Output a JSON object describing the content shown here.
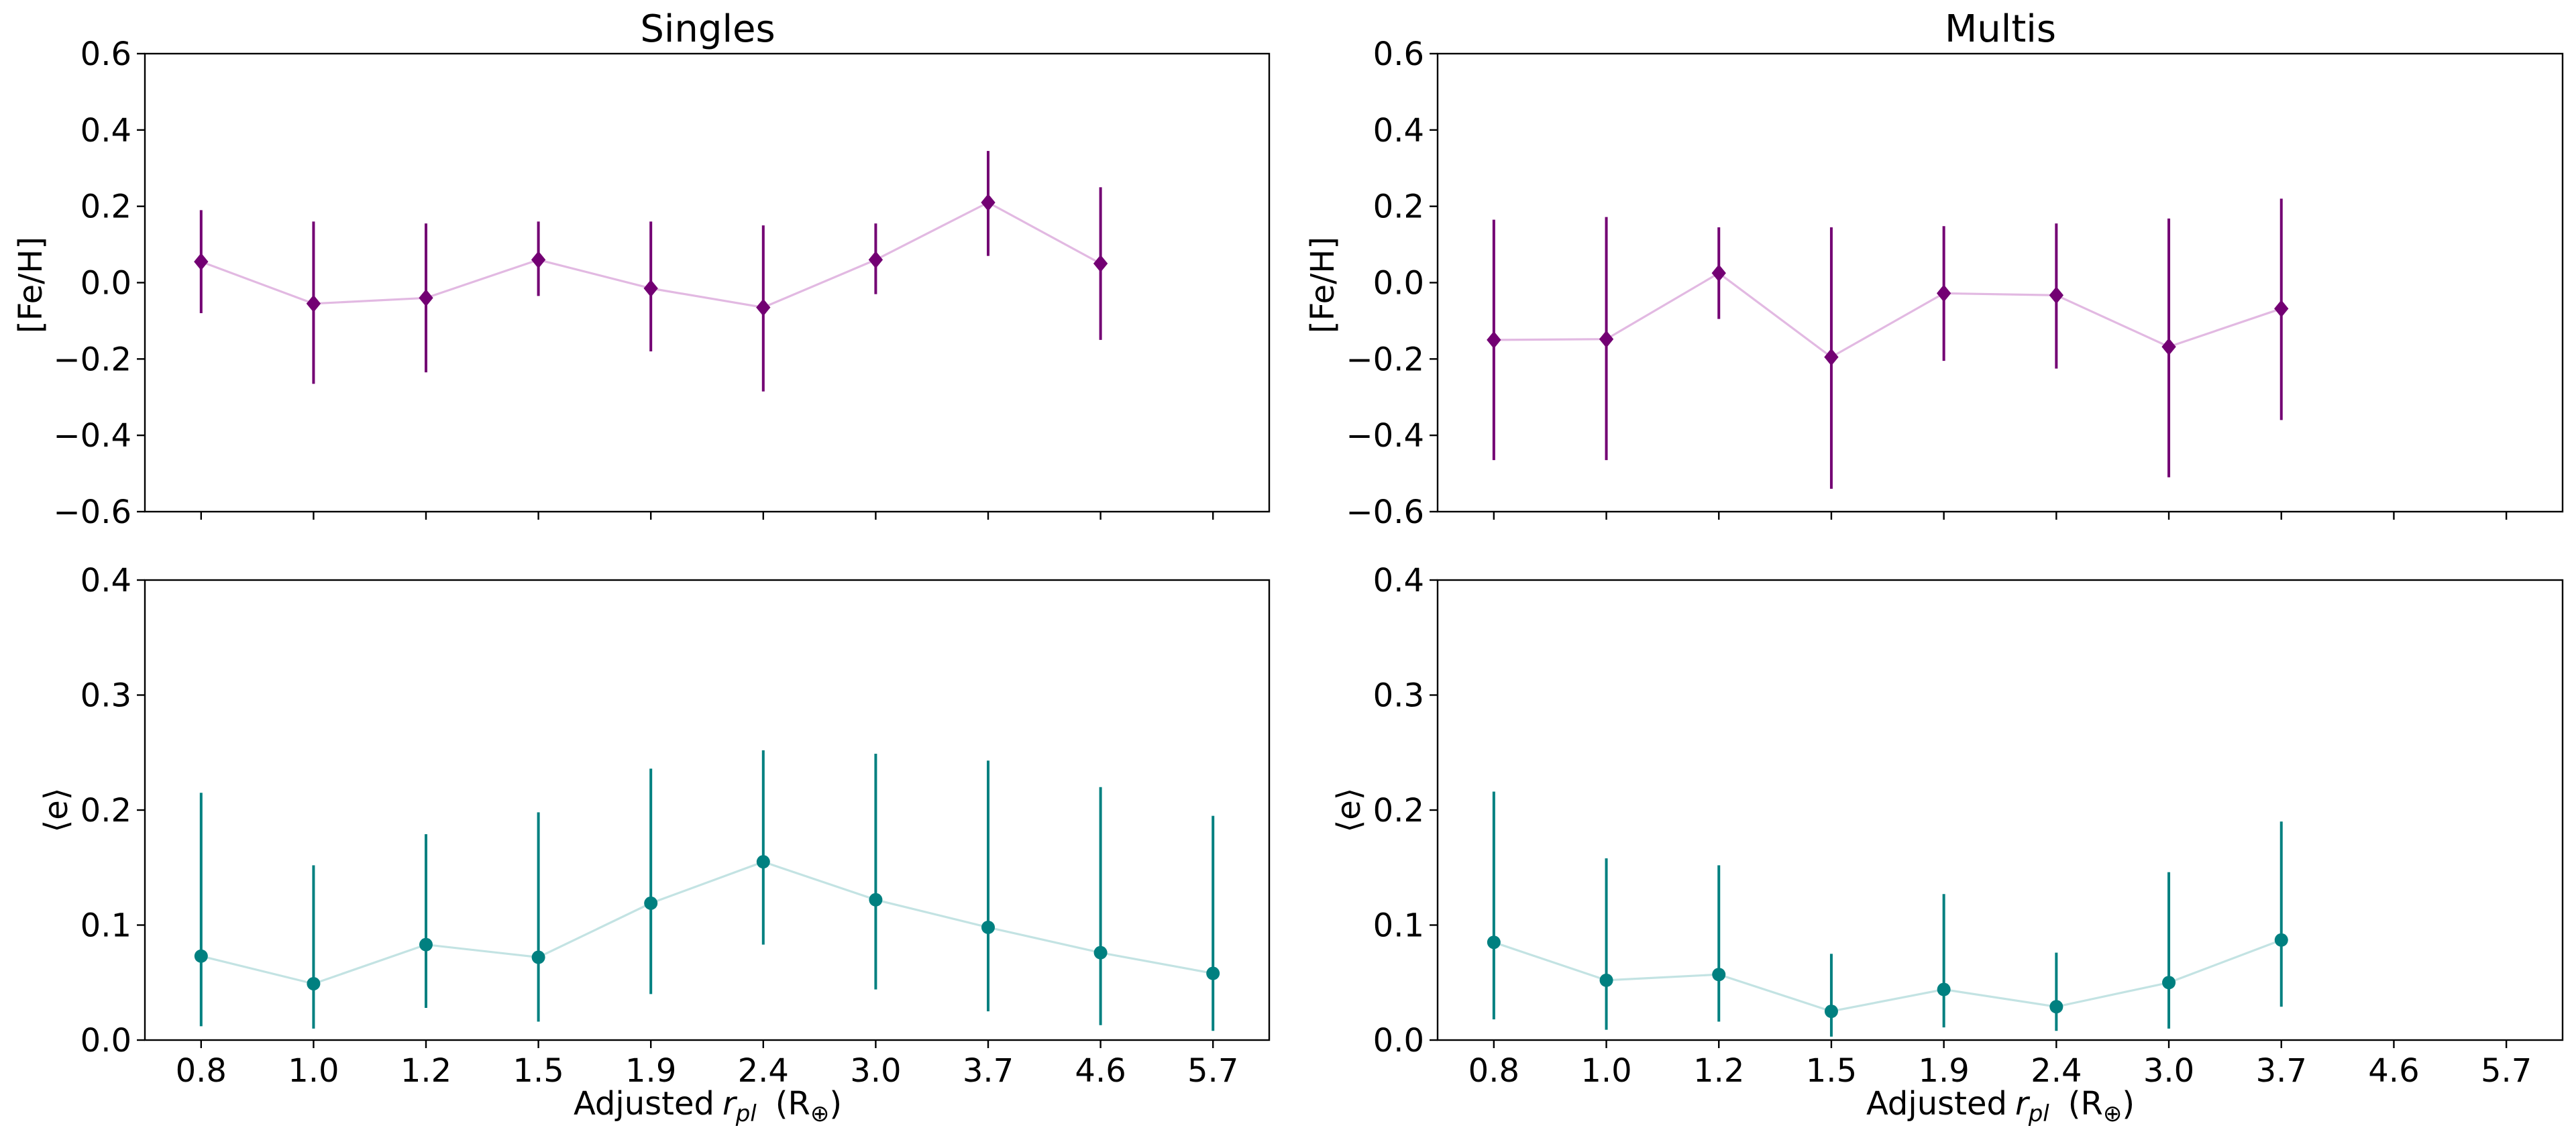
{
  "chart_data": [
    {
      "type": "errorbar-line",
      "title": "Singles",
      "ylabel": "[Fe/H]",
      "xlabel": "",
      "ylim": [
        -0.6,
        0.6
      ],
      "yticks": [
        "0.6",
        "0.4",
        "0.2",
        "0.0",
        "−0.2",
        "−0.4",
        "−0.6"
      ],
      "ytick_values": [
        0.6,
        0.4,
        0.2,
        0.0,
        -0.2,
        -0.4,
        -0.6
      ],
      "categories": [
        "0.8",
        "1.0",
        "1.2",
        "1.5",
        "1.9",
        "2.4",
        "3.0",
        "3.7",
        "4.6",
        "5.7"
      ],
      "show_xticklabels": false,
      "marker": "diamond",
      "marker_color": "#730073",
      "line_color": "#e2b9e2",
      "values": [
        0.055,
        -0.055,
        -0.04,
        0.06,
        -0.015,
        -0.065,
        0.06,
        0.21,
        0.05,
        null
      ],
      "err_low": [
        -0.08,
        -0.265,
        -0.235,
        -0.035,
        -0.18,
        -0.285,
        -0.03,
        0.07,
        -0.15,
        null
      ],
      "err_high": [
        0.19,
        0.16,
        0.155,
        0.16,
        0.16,
        0.15,
        0.155,
        0.345,
        0.25,
        null
      ]
    },
    {
      "type": "errorbar-line",
      "title": "Multis",
      "ylabel": "[Fe/H]",
      "xlabel": "",
      "ylim": [
        -0.6,
        0.6
      ],
      "yticks": [
        "0.6",
        "0.4",
        "0.2",
        "0.0",
        "−0.2",
        "−0.4",
        "−0.6"
      ],
      "ytick_values": [
        0.6,
        0.4,
        0.2,
        0.0,
        -0.2,
        -0.4,
        -0.6
      ],
      "categories": [
        "0.8",
        "1.0",
        "1.2",
        "1.5",
        "1.9",
        "2.4",
        "3.0",
        "3.7",
        "4.6",
        "5.7"
      ],
      "show_xticklabels": false,
      "marker": "diamond",
      "marker_color": "#730073",
      "line_color": "#e2b9e2",
      "values": [
        -0.15,
        -0.148,
        0.025,
        -0.195,
        -0.028,
        -0.033,
        -0.168,
        -0.068,
        null,
        null
      ],
      "err_low": [
        -0.465,
        -0.465,
        -0.095,
        -0.54,
        -0.205,
        -0.225,
        -0.51,
        -0.36,
        null,
        null
      ],
      "err_high": [
        0.165,
        0.172,
        0.145,
        0.145,
        0.148,
        0.155,
        0.168,
        0.22,
        null,
        null
      ]
    },
    {
      "type": "errorbar-line",
      "title": "",
      "ylabel": "⟨e⟩",
      "xlabel": "Adjusted",
      "xlabel_sym": "r",
      "xlabel_sub": "pl",
      "xlabel_unit": "(R",
      "xlabel_unit_sub": "⊕",
      "xlabel_close": ")",
      "ylim": [
        0.0,
        0.4
      ],
      "yticks": [
        "0.4",
        "0.3",
        "0.2",
        "0.1",
        "0.0"
      ],
      "ytick_values": [
        0.4,
        0.3,
        0.2,
        0.1,
        0.0
      ],
      "categories": [
        "0.8",
        "1.0",
        "1.2",
        "1.5",
        "1.9",
        "2.4",
        "3.0",
        "3.7",
        "4.6",
        "5.7"
      ],
      "show_xticklabels": true,
      "marker": "circle",
      "marker_color": "#008080",
      "line_color": "#c3e3e3",
      "values": [
        0.073,
        0.049,
        0.083,
        0.072,
        0.119,
        0.155,
        0.122,
        0.098,
        0.076,
        0.058
      ],
      "err_low": [
        0.012,
        0.01,
        0.028,
        0.016,
        0.04,
        0.083,
        0.044,
        0.025,
        0.013,
        0.008
      ],
      "err_high": [
        0.215,
        0.152,
        0.179,
        0.198,
        0.236,
        0.252,
        0.249,
        0.243,
        0.22,
        0.195
      ]
    },
    {
      "type": "errorbar-line",
      "title": "",
      "ylabel": "⟨e⟩",
      "xlabel": "Adjusted",
      "xlabel_sym": "r",
      "xlabel_sub": "pl",
      "xlabel_unit": "(R",
      "xlabel_unit_sub": "⊕",
      "xlabel_close": ")",
      "ylim": [
        0.0,
        0.4
      ],
      "yticks": [
        "0.4",
        "0.3",
        "0.2",
        "0.1",
        "0.0"
      ],
      "ytick_values": [
        0.4,
        0.3,
        0.2,
        0.1,
        0.0
      ],
      "categories": [
        "0.8",
        "1.0",
        "1.2",
        "1.5",
        "1.9",
        "2.4",
        "3.0",
        "3.7",
        "4.6",
        "5.7"
      ],
      "show_xticklabels": true,
      "marker": "circle",
      "marker_color": "#008080",
      "line_color": "#c3e3e3",
      "values": [
        0.085,
        0.052,
        0.057,
        0.025,
        0.044,
        0.029,
        0.05,
        0.087,
        null,
        null
      ],
      "err_low": [
        0.018,
        0.009,
        0.016,
        0.003,
        0.011,
        0.008,
        0.01,
        0.029,
        null,
        null
      ],
      "err_high": [
        0.216,
        0.158,
        0.152,
        0.075,
        0.127,
        0.076,
        0.146,
        0.19,
        null,
        null
      ]
    }
  ]
}
